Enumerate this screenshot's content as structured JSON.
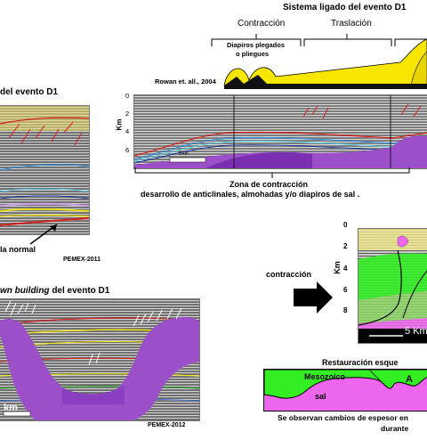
{
  "top_right": {
    "system_title": "Sistema ligado del evento D1",
    "phase_contraction": "Contracción",
    "phase_translation": "Traslación",
    "diapir_label_1": "Diapiros plegados",
    "diapir_label_2": "o pliegues",
    "citation": "Rowan et. all., 2004",
    "axis_unit": "Km",
    "axis_ticks": [
      "0",
      "2",
      "4",
      "6"
    ],
    "scale_bar": "5 km",
    "caption_1": "Zona de contracción",
    "caption_2": "desarrollo de anticlinales, almohadas y/o diapiros de sal ."
  },
  "top_left": {
    "title_fragment": "del evento D1",
    "fault_label": "la normal",
    "credit": "PEMEX-2011"
  },
  "mid_left": {
    "title_italic": "wn building",
    "title_rest": " del evento D1",
    "scale_bar": "km",
    "credit": "PEMEX-2012"
  },
  "mid_right": {
    "arrow_label": "contracción",
    "axis_unit": "Km",
    "axis_ticks": [
      "0",
      "2",
      "4",
      "6",
      "8"
    ],
    "scale_bar": "5 Km"
  },
  "bottom_right": {
    "title": "Restauración esque",
    "label_mesozoic": "Mesozoico",
    "label_salt": "sal",
    "label_a": "A",
    "caption_1": "Se observan cambios de espesor en",
    "caption_2": "durante"
  },
  "colors": {
    "salt": "#9b4fc9",
    "section_yellow": "#f7e600",
    "mesozoic_green": "#33ee22",
    "salt_magenta": "#ee66ee",
    "fault_red": "#d42020",
    "horizon_blue": "#3a8fd8",
    "horizon_cyan": "#5ad8f0"
  }
}
